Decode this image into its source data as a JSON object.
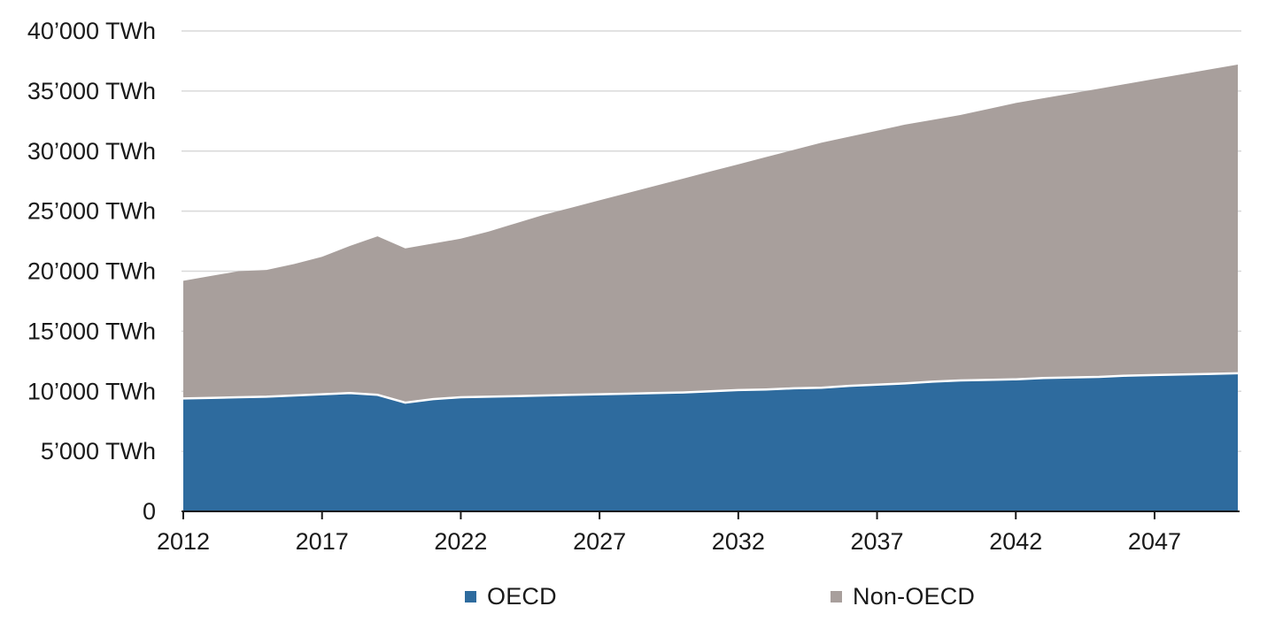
{
  "chart_data": {
    "type": "area",
    "stacked": true,
    "title": "",
    "xlabel": "",
    "ylabel": "TWh",
    "x": [
      2012,
      2013,
      2014,
      2015,
      2016,
      2017,
      2018,
      2019,
      2020,
      2021,
      2022,
      2023,
      2024,
      2025,
      2026,
      2027,
      2028,
      2029,
      2030,
      2031,
      2032,
      2033,
      2034,
      2035,
      2036,
      2037,
      2038,
      2039,
      2040,
      2041,
      2042,
      2043,
      2044,
      2045,
      2046,
      2047,
      2048,
      2049,
      2050
    ],
    "series": [
      {
        "name": "OECD",
        "color": "#2e6b9e",
        "values": [
          9400,
          9450,
          9500,
          9550,
          9650,
          9750,
          9850,
          9700,
          9050,
          9350,
          9500,
          9550,
          9600,
          9650,
          9700,
          9750,
          9800,
          9850,
          9900,
          10000,
          10100,
          10150,
          10250,
          10300,
          10450,
          10550,
          10650,
          10800,
          10900,
          10950,
          11000,
          11100,
          11150,
          11200,
          11300,
          11350,
          11400,
          11450,
          11500
        ]
      },
      {
        "name": "Non-OECD",
        "color": "#a89f9c",
        "values": [
          9800,
          10150,
          10500,
          10550,
          10950,
          11450,
          12250,
          13200,
          12850,
          12950,
          13200,
          13750,
          14400,
          15050,
          15600,
          16150,
          16700,
          17250,
          17800,
          18300,
          18800,
          19350,
          19850,
          20400,
          20750,
          21150,
          21550,
          21800,
          22100,
          22550,
          23000,
          23300,
          23650,
          24000,
          24300,
          24650,
          25000,
          25350,
          25700
        ]
      }
    ],
    "y_axis": {
      "min": 0,
      "max": 40000,
      "tick_step": 5000,
      "tick_labels": [
        "0",
        "5’000 TWh",
        "10’000 TWh",
        "15’000 TWh",
        "20’000 TWh",
        "25’000 TWh",
        "30’000 TWh",
        "35’000 TWh",
        "40’000 TWh"
      ]
    },
    "x_axis": {
      "tick_labels": [
        "2012",
        "2017",
        "2022",
        "2027",
        "2032",
        "2037",
        "2042",
        "2047"
      ],
      "tick_years": [
        2012,
        2017,
        2022,
        2027,
        2032,
        2037,
        2042,
        2047
      ]
    },
    "xlim": [
      2012,
      2050
    ],
    "ylim": [
      0,
      40000
    ],
    "grid": "horizontal",
    "legend_position": "bottom"
  },
  "legend": {
    "items": [
      {
        "label": "OECD",
        "color": "#2e6b9e"
      },
      {
        "label": "Non-OECD",
        "color": "#a89f9c"
      }
    ]
  },
  "style": {
    "background": "#ffffff",
    "grid_color": "#d9d9d9",
    "axis_color": "#1a1a1a",
    "text_color": "#1a1a1a",
    "separator_color": "#ffffff"
  }
}
